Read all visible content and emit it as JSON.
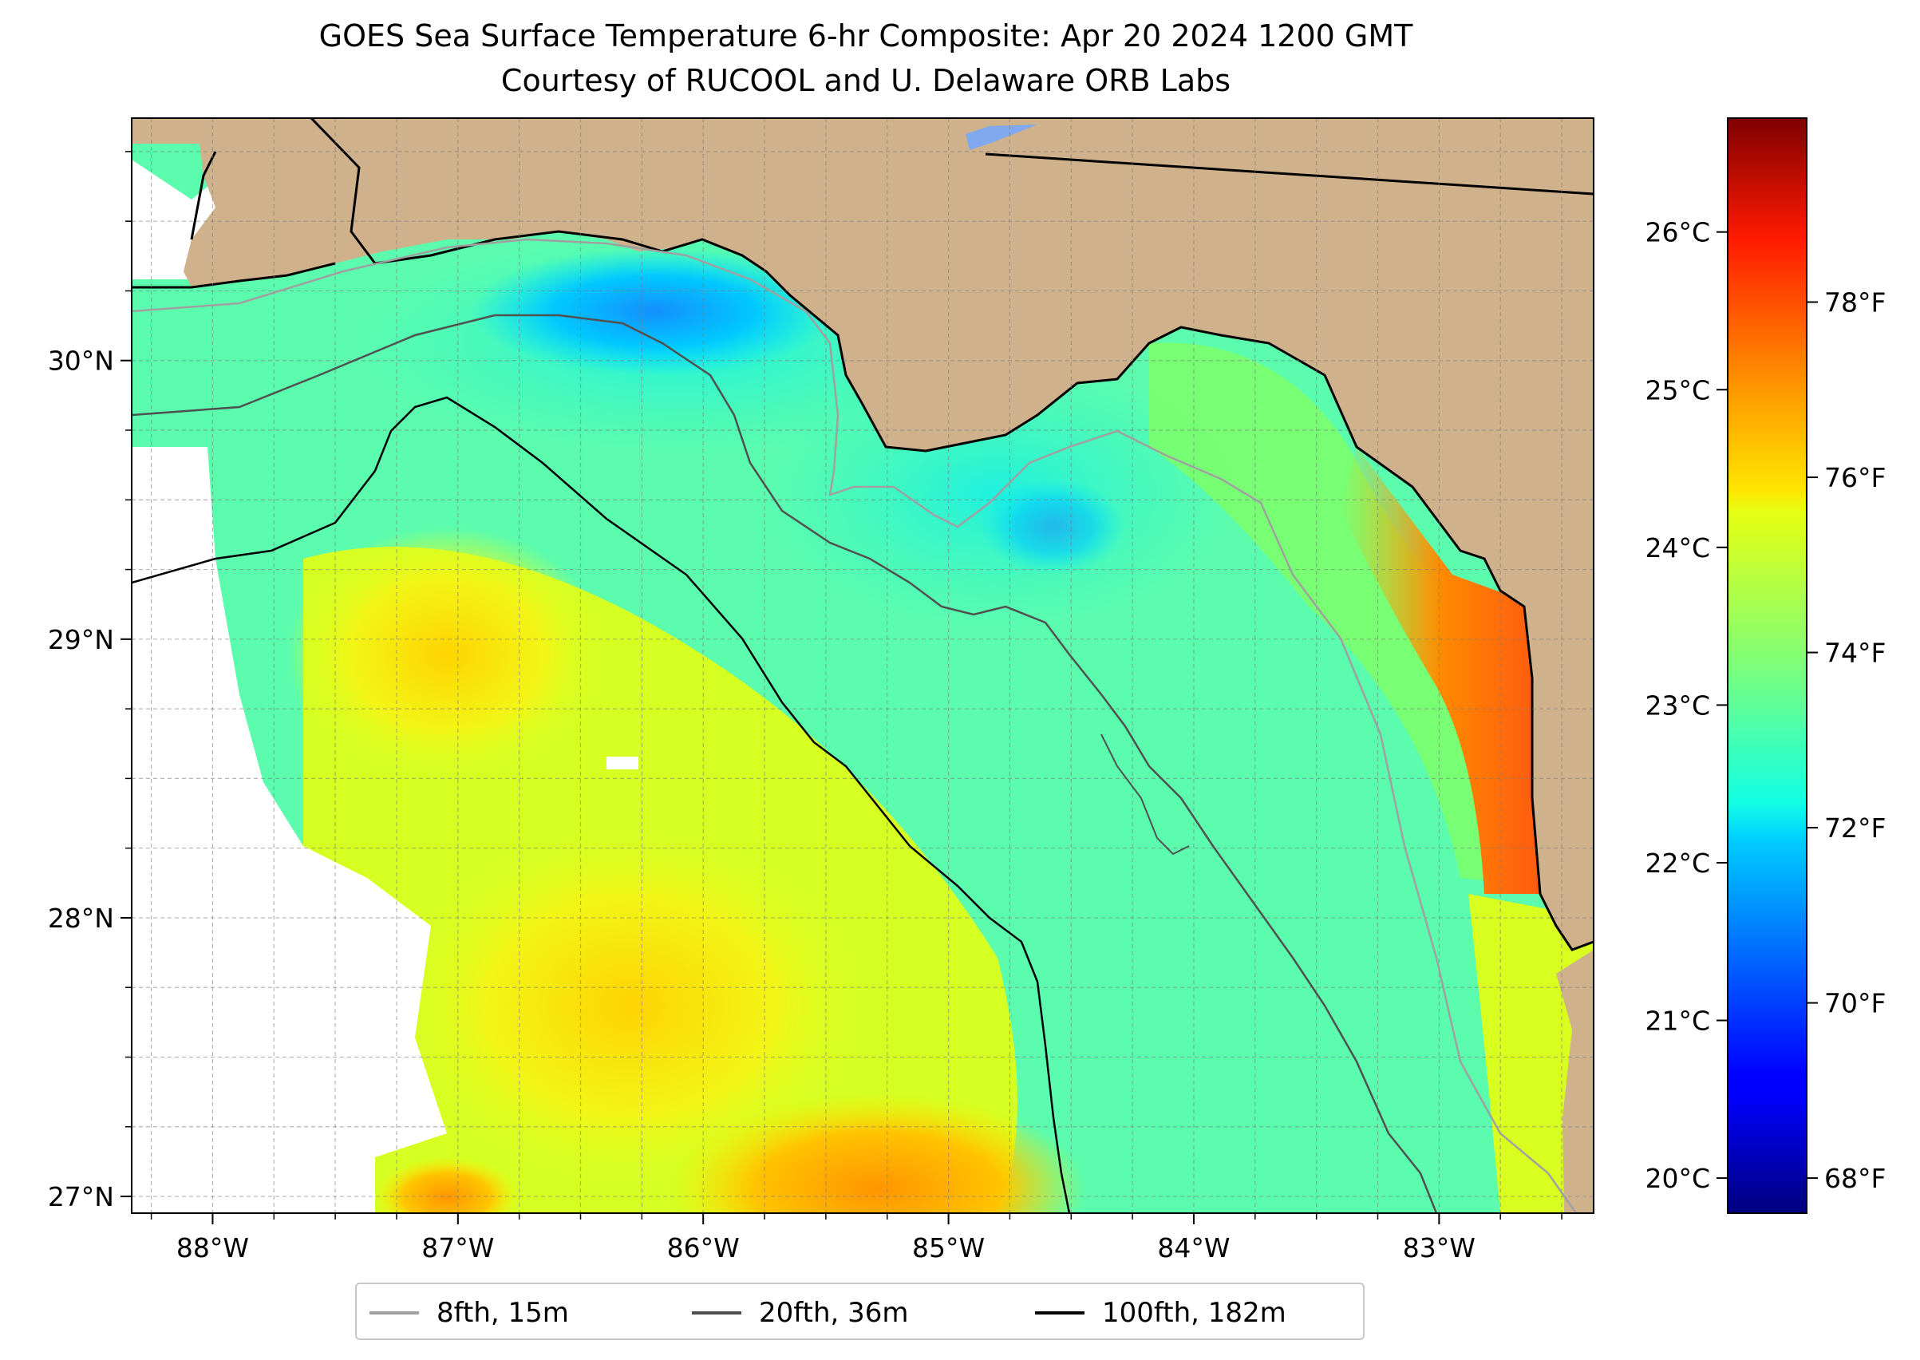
{
  "title": {
    "line1": "GOES Sea Surface Temperature 6-hr Composite: Apr 20 2024 1200 GMT",
    "line2": "Courtesy of RUCOOL and U. Delaware ORB Labs"
  },
  "map": {
    "lon_range": [
      -88.33,
      -82.37
    ],
    "lat_range": [
      26.94,
      30.87
    ],
    "lon_ticks": [
      {
        "value": -88,
        "label": "88°W"
      },
      {
        "value": -87,
        "label": "87°W"
      },
      {
        "value": -86,
        "label": "86°W"
      },
      {
        "value": -85,
        "label": "85°W"
      },
      {
        "value": -84,
        "label": "84°W"
      },
      {
        "value": -83,
        "label": "83°W"
      }
    ],
    "lat_ticks": [
      {
        "value": 30,
        "label": "30°N"
      },
      {
        "value": 29,
        "label": "29°N"
      },
      {
        "value": 28,
        "label": "28°N"
      },
      {
        "value": 27,
        "label": "27°N"
      }
    ],
    "land_color": "#cfb18c",
    "no_data_color": "#ffffff",
    "gridlines": "dashed"
  },
  "colorbar": {
    "colormap": "jet",
    "f_range": [
      67.6,
      80.1
    ],
    "c_ticks": [
      {
        "value": 20,
        "label": "20°C"
      },
      {
        "value": 21,
        "label": "21°C"
      },
      {
        "value": 22,
        "label": "22°C"
      },
      {
        "value": 23,
        "label": "23°C"
      },
      {
        "value": 24,
        "label": "24°C"
      },
      {
        "value": 25,
        "label": "25°C"
      },
      {
        "value": 26,
        "label": "26°C"
      }
    ],
    "f_ticks": [
      {
        "value": 68,
        "label": "68°F"
      },
      {
        "value": 70,
        "label": "70°F"
      },
      {
        "value": 72,
        "label": "72°F"
      },
      {
        "value": 74,
        "label": "74°F"
      },
      {
        "value": 76,
        "label": "76°F"
      },
      {
        "value": 78,
        "label": "78°F"
      }
    ]
  },
  "legend": {
    "items": [
      {
        "label": "8fth, 15m",
        "color": "#a0a0a0"
      },
      {
        "label": "20fth, 36m",
        "color": "#505050"
      },
      {
        "label": "100fth, 182m",
        "color": "#000000"
      }
    ]
  }
}
